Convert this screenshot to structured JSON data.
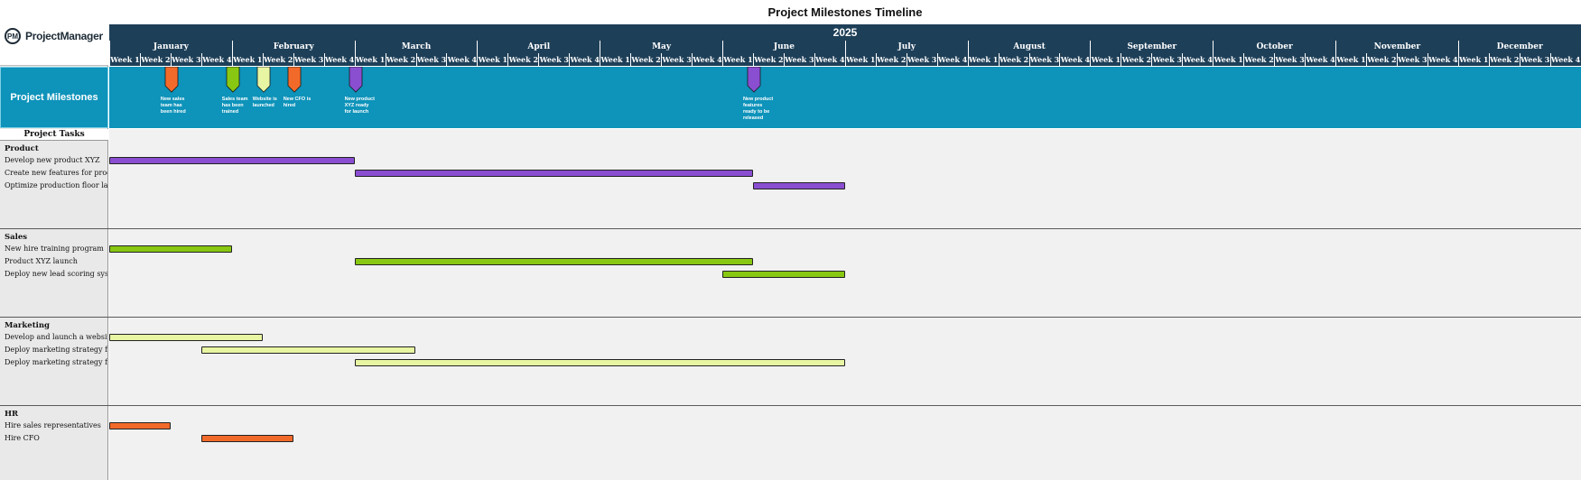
{
  "title": "Project Milestones Timeline",
  "year": "2025",
  "logo": {
    "mark": "PM",
    "text": "ProjectManager"
  },
  "months": [
    "January",
    "February",
    "March",
    "April",
    "May",
    "June",
    "July",
    "August",
    "September",
    "October",
    "November",
    "December"
  ],
  "weeks": [
    "Week 1",
    "Week 2",
    "Week 3",
    "Week 4"
  ],
  "milestones_label": "Project Milestones",
  "tasks_header": "Project Tasks",
  "colors": {
    "orange": "#f26a2a",
    "green": "#88c712",
    "lightgreen": "#e8f5a3",
    "purple": "#8a4ed1",
    "navy": "#1e3f58",
    "teal": "#0e93ba"
  },
  "milestones": [
    {
      "week": 2,
      "color": "orange",
      "text": "New sales team has been hired"
    },
    {
      "week": 4,
      "color": "green",
      "text": "Sales team has been trained"
    },
    {
      "week": 5,
      "color": "lightgreen",
      "text": "Website is launched"
    },
    {
      "week": 6,
      "color": "orange",
      "text": "New CFO is hired"
    },
    {
      "week": 8,
      "color": "purple",
      "text": "New product XYZ ready for launch"
    },
    {
      "week": 21,
      "color": "purple",
      "text": "New product features ready to be released"
    }
  ],
  "sections": [
    {
      "name": "Product",
      "tasks": [
        {
          "label": "Develop new product XYZ",
          "start": 0,
          "end": 8,
          "color": "purple"
        },
        {
          "label": "Create new features for product",
          "start": 8,
          "end": 21,
          "color": "purple"
        },
        {
          "label": "Optimize production floor layout",
          "start": 21,
          "end": 24,
          "color": "purple"
        }
      ]
    },
    {
      "name": "Sales",
      "tasks": [
        {
          "label": "New hire training program",
          "start": 0,
          "end": 4,
          "color": "green"
        },
        {
          "label": "Product XYZ launch",
          "start": 8,
          "end": 21,
          "color": "green"
        },
        {
          "label": "Deploy new lead scoring system",
          "start": 20,
          "end": 24,
          "color": "green"
        }
      ]
    },
    {
      "name": "Marketing",
      "tasks": [
        {
          "label": "Develop and launch a website",
          "start": 0,
          "end": 5,
          "color": "lightgreen"
        },
        {
          "label": "Deploy marketing strategy for X",
          "start": 3,
          "end": 10,
          "color": "lightgreen"
        },
        {
          "label": "Deploy marketing strategy for A",
          "start": 8,
          "end": 24,
          "color": "lightgreen"
        }
      ]
    },
    {
      "name": "HR",
      "tasks": [
        {
          "label": "Hire sales representatives",
          "start": 0,
          "end": 2,
          "color": "orange"
        },
        {
          "label": "Hire CFO",
          "start": 3,
          "end": 6,
          "color": "orange"
        }
      ]
    }
  ]
}
